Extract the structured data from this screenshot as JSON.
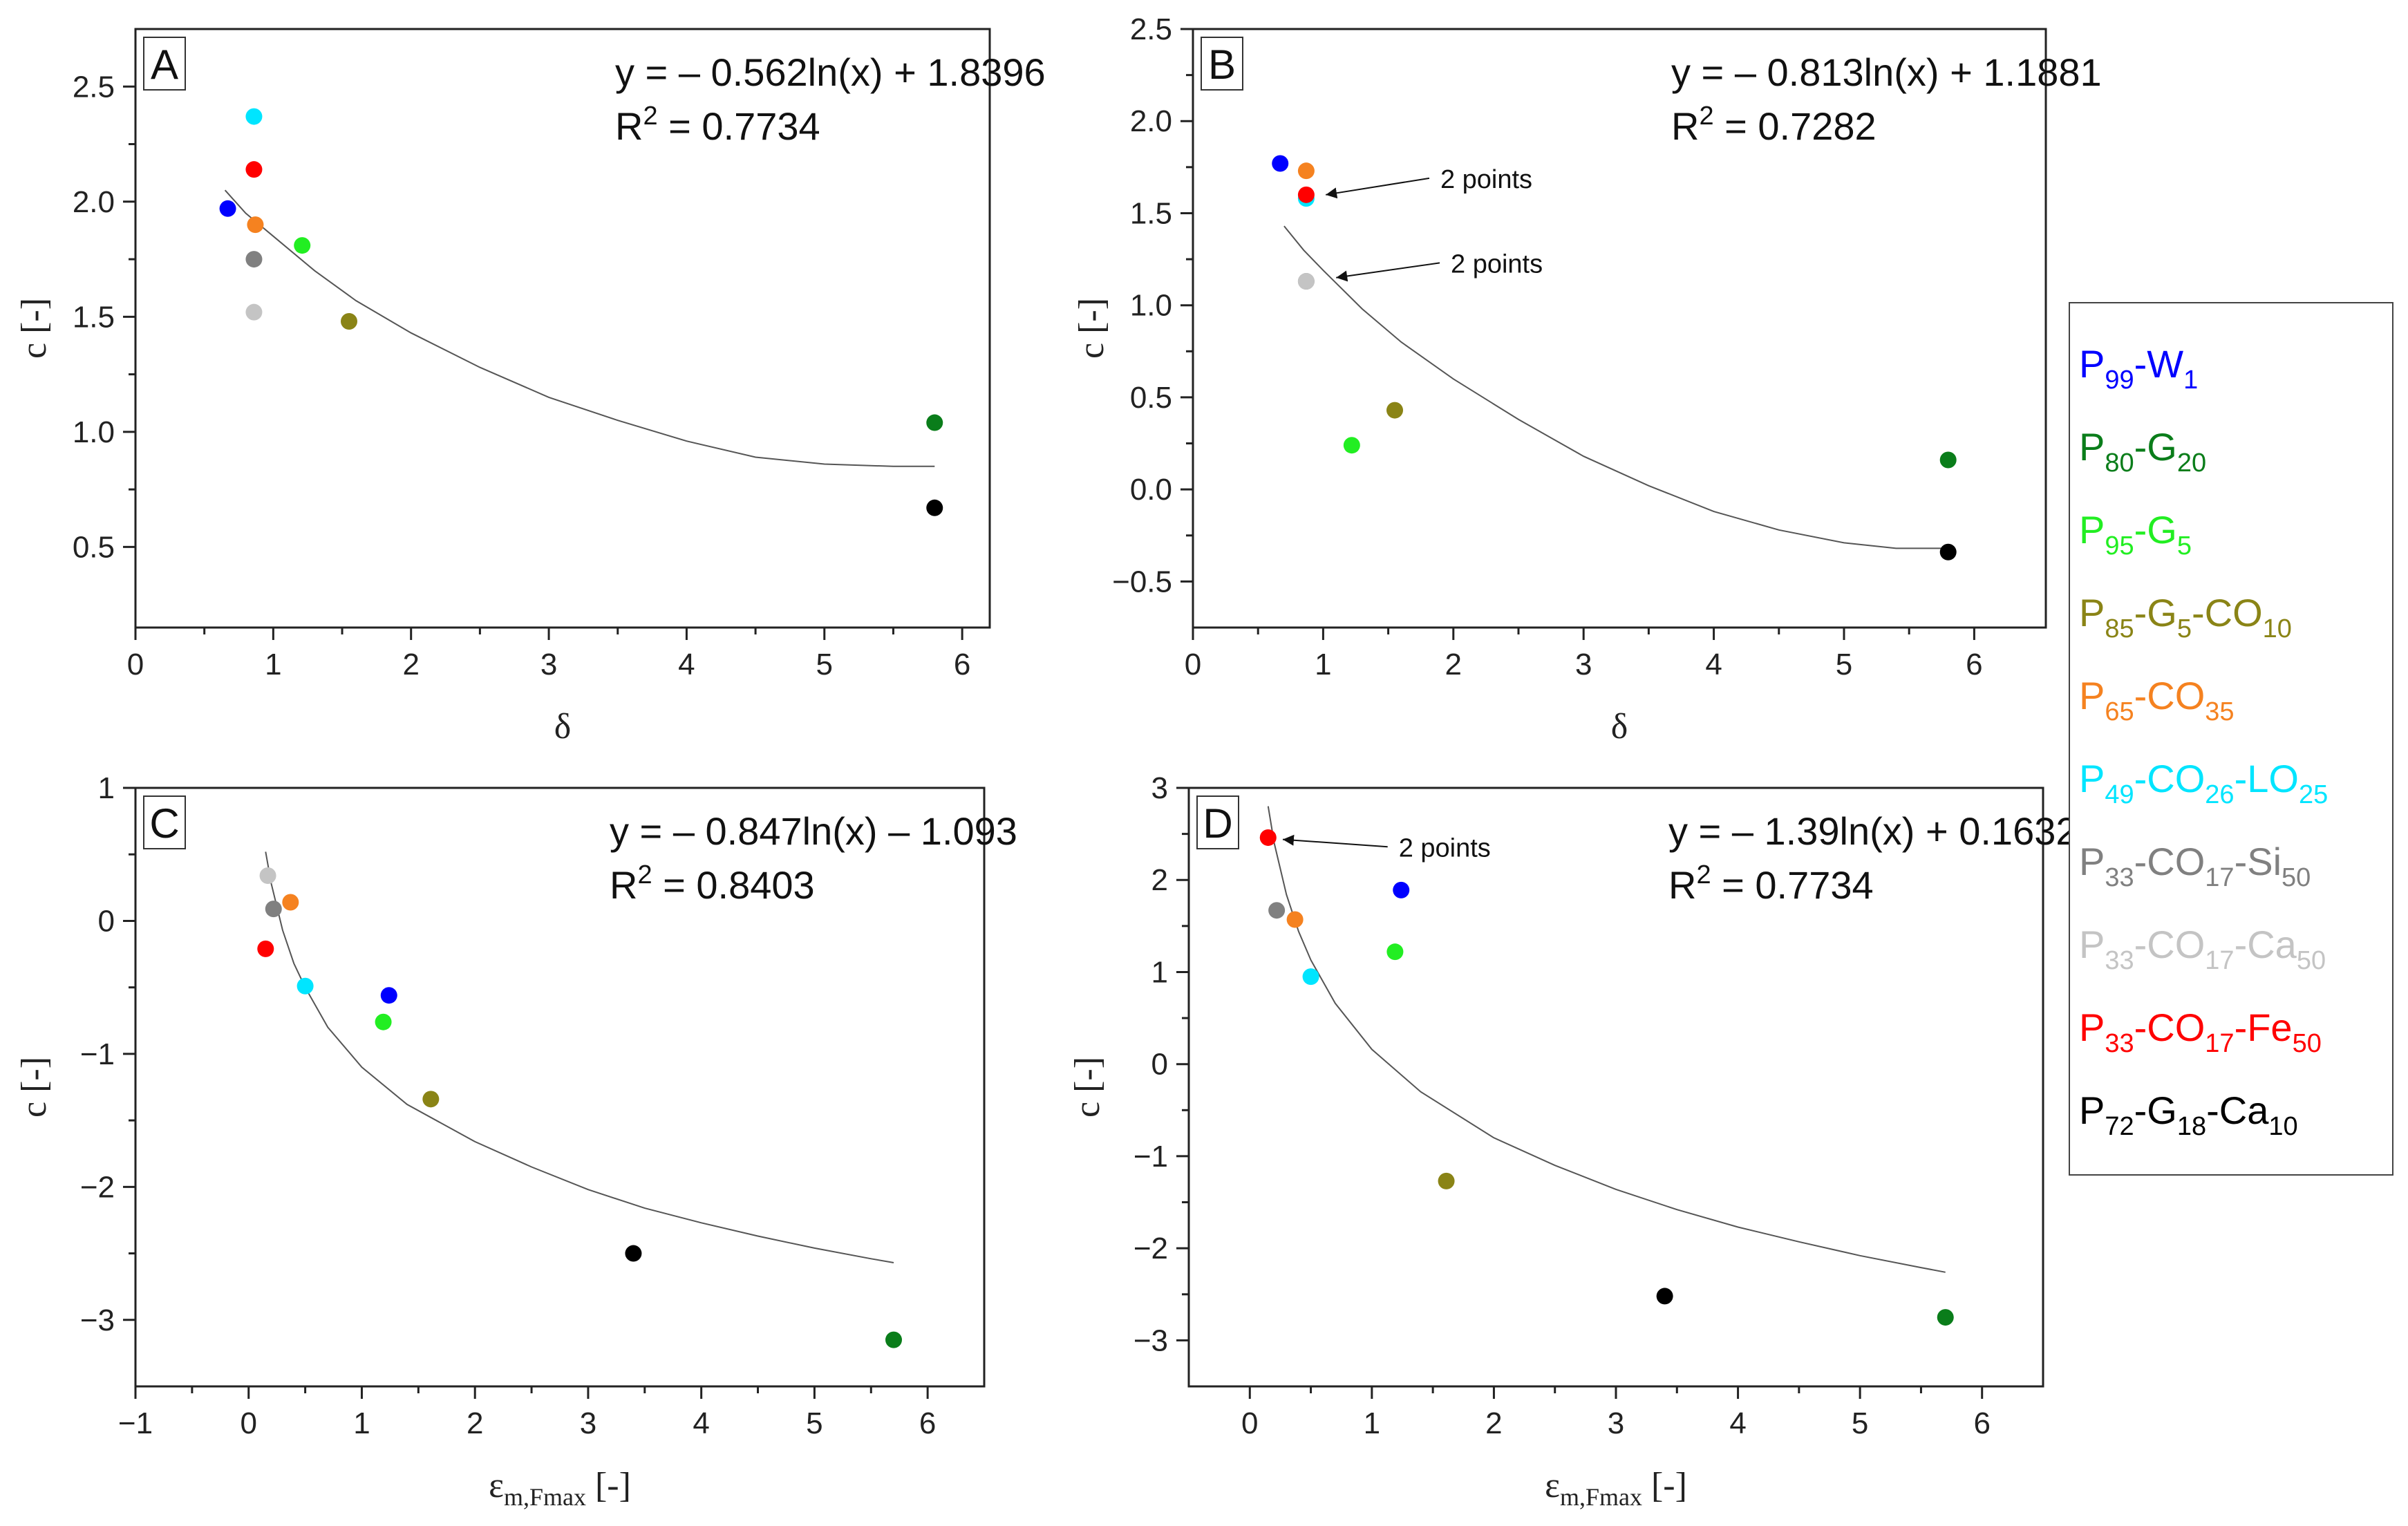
{
  "legend": [
    {
      "key": "p99w1",
      "color": "#0000ff",
      "parts": [
        [
          "P",
          ""
        ],
        [
          "99",
          "sub"
        ],
        [
          "-W",
          ""
        ],
        [
          "1",
          "sub"
        ]
      ]
    },
    {
      "key": "p80g20",
      "color": "#0a7d1a",
      "parts": [
        [
          "P",
          ""
        ],
        [
          "80",
          "sub"
        ],
        [
          "-G",
          ""
        ],
        [
          "20",
          "sub"
        ]
      ]
    },
    {
      "key": "p95g5",
      "color": "#22ee22",
      "parts": [
        [
          "P",
          ""
        ],
        [
          "95",
          "sub"
        ],
        [
          "-G",
          ""
        ],
        [
          "5",
          "sub"
        ]
      ]
    },
    {
      "key": "p85g5co10",
      "color": "#8a8416",
      "parts": [
        [
          "P",
          ""
        ],
        [
          "85",
          "sub"
        ],
        [
          "-G",
          ""
        ],
        [
          "5",
          "sub"
        ],
        [
          "-CO",
          ""
        ],
        [
          "10",
          "sub"
        ]
      ]
    },
    {
      "key": "p65co35",
      "color": "#f58220",
      "parts": [
        [
          "P",
          ""
        ],
        [
          "65",
          "sub"
        ],
        [
          "-CO",
          ""
        ],
        [
          "35",
          "sub"
        ]
      ]
    },
    {
      "key": "p49co26lo25",
      "color": "#00e5ff",
      "parts": [
        [
          "P",
          ""
        ],
        [
          "49",
          "sub"
        ],
        [
          "-CO",
          ""
        ],
        [
          "26",
          "sub"
        ],
        [
          "-LO",
          ""
        ],
        [
          "25",
          "sub"
        ]
      ]
    },
    {
      "key": "p33co17si50",
      "color": "#808080",
      "parts": [
        [
          "P",
          ""
        ],
        [
          "33",
          "sub"
        ],
        [
          "-CO",
          ""
        ],
        [
          "17",
          "sub"
        ],
        [
          "-Si",
          ""
        ],
        [
          "50",
          "sub"
        ]
      ]
    },
    {
      "key": "p33co17ca50",
      "color": "#c4c4c4",
      "parts": [
        [
          "P",
          ""
        ],
        [
          "33",
          "sub"
        ],
        [
          "-CO",
          ""
        ],
        [
          "17",
          "sub"
        ],
        [
          "-Ca",
          ""
        ],
        [
          "50",
          "sub"
        ]
      ]
    },
    {
      "key": "p33co17fe50",
      "color": "#ff0000",
      "parts": [
        [
          "P",
          ""
        ],
        [
          "33",
          "sub"
        ],
        [
          "-CO",
          ""
        ],
        [
          "17",
          "sub"
        ],
        [
          "-Fe",
          ""
        ],
        [
          "50",
          "sub"
        ]
      ]
    },
    {
      "key": "p72g18ca10",
      "color": "#000000",
      "parts": [
        [
          "P",
          ""
        ],
        [
          "72",
          "sub"
        ],
        [
          "-G",
          ""
        ],
        [
          "18",
          "sub"
        ],
        [
          "-Ca",
          ""
        ],
        [
          "10",
          "sub"
        ]
      ]
    }
  ],
  "chart_data": [
    {
      "panel": "A",
      "type": "scatter",
      "xlabel": "δ",
      "ylabel": "c [-]",
      "xlim": [
        0,
        6.2
      ],
      "ylim": [
        0.15,
        2.75
      ],
      "xticks": [
        0,
        1,
        2,
        3,
        4,
        5,
        6
      ],
      "yticks": [
        0.5,
        1.0,
        1.5,
        2.0,
        2.5
      ],
      "ytick_labels": [
        "0.5",
        "1.0",
        "1.5",
        "2.0",
        "2.5"
      ],
      "xtick_labels": [
        "0",
        "1",
        "2",
        "3",
        "4",
        "5",
        "6"
      ],
      "equation": "y = – 0.562ln(x) + 1.8396",
      "r2_label": "R",
      "r2_sup": "2",
      "r2_value": " = 0.7734",
      "trend_points": [
        [
          0.65,
          2.05
        ],
        [
          0.8,
          1.95
        ],
        [
          1.0,
          1.85
        ],
        [
          1.3,
          1.7
        ],
        [
          1.6,
          1.57
        ],
        [
          2.0,
          1.43
        ],
        [
          2.5,
          1.28
        ],
        [
          3.0,
          1.15
        ],
        [
          3.5,
          1.05
        ],
        [
          4.0,
          0.96
        ],
        [
          4.5,
          0.89
        ],
        [
          5.0,
          0.86
        ],
        [
          5.5,
          0.85
        ],
        [
          5.8,
          0.85
        ]
      ],
      "points": [
        {
          "series": "p99w1",
          "x": 0.67,
          "y": 1.97
        },
        {
          "series": "p80g20",
          "x": 5.8,
          "y": 1.04
        },
        {
          "series": "p95g5",
          "x": 1.21,
          "y": 1.81
        },
        {
          "series": "p85g5co10",
          "x": 1.55,
          "y": 1.48
        },
        {
          "series": "p65co35",
          "x": 0.87,
          "y": 1.9
        },
        {
          "series": "p49co26lo25",
          "x": 0.86,
          "y": 2.37
        },
        {
          "series": "p33co17si50",
          "x": 0.86,
          "y": 1.75
        },
        {
          "series": "p33co17ca50",
          "x": 0.86,
          "y": 1.52
        },
        {
          "series": "p33co17fe50",
          "x": 0.86,
          "y": 2.14
        },
        {
          "series": "p72g18ca10",
          "x": 5.8,
          "y": 0.67
        }
      ],
      "annotations": []
    },
    {
      "panel": "B",
      "type": "scatter",
      "xlabel": "δ",
      "ylabel": "c [-]",
      "xlim": [
        0,
        6.55
      ],
      "ylim": [
        -0.75,
        2.5
      ],
      "xticks": [
        0,
        1,
        2,
        3,
        4,
        5,
        6
      ],
      "yticks": [
        -0.5,
        0.0,
        0.5,
        1.0,
        1.5,
        2.0,
        2.5
      ],
      "ytick_labels": [
        "−0.5",
        "0.0",
        "0.5",
        "1.0",
        "1.5",
        "2.0",
        "2.5"
      ],
      "xtick_labels": [
        "0",
        "1",
        "2",
        "3",
        "4",
        "5",
        "6"
      ],
      "equation": "y = – 0.813ln(x) + 1.1881",
      "r2_label": "R",
      "r2_sup": "2",
      "r2_value": " = 0.7282",
      "trend_points": [
        [
          0.7,
          1.43
        ],
        [
          0.85,
          1.3
        ],
        [
          1.0,
          1.19
        ],
        [
          1.3,
          0.98
        ],
        [
          1.6,
          0.8
        ],
        [
          2.0,
          0.6
        ],
        [
          2.5,
          0.38
        ],
        [
          3.0,
          0.18
        ],
        [
          3.5,
          0.02
        ],
        [
          4.0,
          -0.12
        ],
        [
          4.5,
          -0.22
        ],
        [
          5.0,
          -0.29
        ],
        [
          5.4,
          -0.32
        ],
        [
          5.8,
          -0.32
        ]
      ],
      "points": [
        {
          "series": "p99w1",
          "x": 0.67,
          "y": 1.77
        },
        {
          "series": "p80g20",
          "x": 5.8,
          "y": 0.16
        },
        {
          "series": "p95g5",
          "x": 1.22,
          "y": 0.24
        },
        {
          "series": "p85g5co10",
          "x": 1.55,
          "y": 0.43
        },
        {
          "series": "p65co35",
          "x": 0.87,
          "y": 1.73
        },
        {
          "series": "p49co26lo25",
          "x": 0.87,
          "y": 1.58
        },
        {
          "series": "p33co17si50",
          "x": 0.87,
          "y": 1.13
        },
        {
          "series": "p33co17ca50",
          "x": 0.87,
          "y": 1.13
        },
        {
          "series": "p33co17fe50",
          "x": 0.87,
          "y": 1.6
        },
        {
          "series": "p72g18ca10",
          "x": 5.8,
          "y": -0.34
        }
      ],
      "annotations": [
        {
          "text": "2 points",
          "tx": 1.9,
          "ty": 1.69,
          "ax": 1.02,
          "ay": 1.6
        },
        {
          "text": "2 points",
          "tx": 1.98,
          "ty": 1.23,
          "ax": 1.1,
          "ay": 1.15
        }
      ]
    },
    {
      "panel": "C",
      "type": "scatter",
      "xlabel": "εm,Fmax [-]",
      "ylabel": "c [-]",
      "xlim": [
        -1,
        6.5
      ],
      "ylim": [
        -3.5,
        1.0
      ],
      "xticks": [
        -1,
        0,
        1,
        2,
        3,
        4,
        5,
        6
      ],
      "yticks": [
        -3,
        -2,
        -1,
        0,
        1
      ],
      "ytick_labels": [
        "−3",
        "−2",
        "−1",
        "0",
        "1"
      ],
      "xtick_labels": [
        "−1",
        "0",
        "1",
        "2",
        "3",
        "4",
        "5",
        "6"
      ],
      "equation": "y = – 0.847ln(x) – 1.093",
      "r2_label": "R",
      "r2_sup": "2",
      "r2_value": " = 0.8403",
      "trend_points": [
        [
          0.15,
          0.52
        ],
        [
          0.2,
          0.28
        ],
        [
          0.3,
          -0.07
        ],
        [
          0.4,
          -0.32
        ],
        [
          0.5,
          -0.5
        ],
        [
          0.7,
          -0.8
        ],
        [
          1.0,
          -1.1
        ],
        [
          1.4,
          -1.38
        ],
        [
          2.0,
          -1.66
        ],
        [
          2.5,
          -1.85
        ],
        [
          3.0,
          -2.02
        ],
        [
          3.5,
          -2.16
        ],
        [
          4.0,
          -2.27
        ],
        [
          4.5,
          -2.37
        ],
        [
          5.0,
          -2.46
        ],
        [
          5.5,
          -2.54
        ],
        [
          5.7,
          -2.57
        ]
      ],
      "points": [
        {
          "series": "p99w1",
          "x": 1.24,
          "y": -0.56
        },
        {
          "series": "p80g20",
          "x": 5.7,
          "y": -3.15
        },
        {
          "series": "p95g5",
          "x": 1.19,
          "y": -0.76
        },
        {
          "series": "p85g5co10",
          "x": 1.61,
          "y": -1.34
        },
        {
          "series": "p65co35",
          "x": 0.37,
          "y": 0.14
        },
        {
          "series": "p49co26lo25",
          "x": 0.5,
          "y": -0.49
        },
        {
          "series": "p33co17si50",
          "x": 0.22,
          "y": 0.09
        },
        {
          "series": "p33co17ca50",
          "x": 0.17,
          "y": 0.34
        },
        {
          "series": "p33co17fe50",
          "x": 0.15,
          "y": -0.21
        },
        {
          "series": "p72g18ca10",
          "x": 3.4,
          "y": -2.5
        }
      ],
      "annotations": []
    },
    {
      "panel": "D",
      "type": "scatter",
      "xlabel": "εm,Fmax [-]",
      "ylabel": "c [-]",
      "xlim": [
        -0.5,
        6.5
      ],
      "ylim": [
        -3.5,
        3.0
      ],
      "xticks": [
        0,
        1,
        2,
        3,
        4,
        5,
        6
      ],
      "yticks": [
        -3,
        -2,
        -1,
        0,
        1,
        2,
        3
      ],
      "ytick_labels": [
        "−3",
        "−2",
        "−1",
        "0",
        "1",
        "2",
        "3"
      ],
      "xtick_labels": [
        "0",
        "1",
        "2",
        "3",
        "4",
        "5",
        "6"
      ],
      "equation": "y = – 1.39ln(x) + 0.1632",
      "r2_label": "R",
      "r2_sup": "2",
      "r2_value": " = 0.7734",
      "trend_points": [
        [
          0.15,
          2.8
        ],
        [
          0.2,
          2.4
        ],
        [
          0.3,
          1.84
        ],
        [
          0.4,
          1.44
        ],
        [
          0.5,
          1.13
        ],
        [
          0.7,
          0.66
        ],
        [
          1.0,
          0.16
        ],
        [
          1.4,
          -0.3
        ],
        [
          2.0,
          -0.8
        ],
        [
          2.5,
          -1.1
        ],
        [
          3.0,
          -1.36
        ],
        [
          3.5,
          -1.58
        ],
        [
          4.0,
          -1.77
        ],
        [
          4.5,
          -1.93
        ],
        [
          5.0,
          -2.08
        ],
        [
          5.5,
          -2.21
        ],
        [
          5.7,
          -2.26
        ]
      ],
      "points": [
        {
          "series": "p99w1",
          "x": 1.24,
          "y": 1.89
        },
        {
          "series": "p80g20",
          "x": 5.7,
          "y": -2.75
        },
        {
          "series": "p95g5",
          "x": 1.19,
          "y": 1.22
        },
        {
          "series": "p85g5co10",
          "x": 1.61,
          "y": -1.27
        },
        {
          "series": "p65co35",
          "x": 0.37,
          "y": 1.57
        },
        {
          "series": "p49co26lo25",
          "x": 0.5,
          "y": 0.95
        },
        {
          "series": "p33co17si50",
          "x": 0.22,
          "y": 1.67
        },
        {
          "series": "p33co17ca50",
          "x": 0.15,
          "y": 2.46
        },
        {
          "series": "p33co17fe50",
          "x": 0.15,
          "y": 2.46
        },
        {
          "series": "p72g18ca10",
          "x": 3.4,
          "y": -2.52
        }
      ],
      "annotations": [
        {
          "text": "2 points",
          "tx": 1.22,
          "ty": 2.36,
          "ax": 0.27,
          "ay": 2.44
        }
      ]
    }
  ]
}
